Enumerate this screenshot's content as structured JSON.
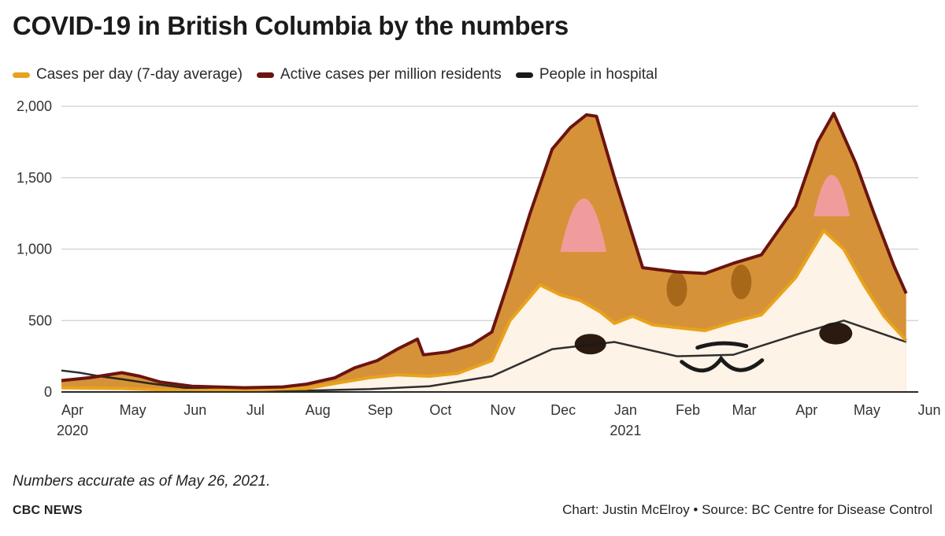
{
  "title": "COVID-19 in British Columbia by the numbers",
  "legend": [
    {
      "label": "Cases per day (7-day average)",
      "color": "#e8a21c"
    },
    {
      "label": "Active cases per million residents",
      "color": "#6b1410"
    },
    {
      "label": "People in hospital",
      "color": "#1a1a1a"
    }
  ],
  "note": "Numbers accurate as of May 26, 2021.",
  "brand": "CBC NEWS",
  "credit": "Chart: Justin McElroy • Source: BC Centre for Disease Control",
  "chart_data": {
    "type": "area",
    "ylim": [
      0,
      2000
    ],
    "yticks": [
      "0",
      "500",
      "1,000",
      "1,500",
      "2,000"
    ],
    "ytick_values": [
      0,
      500,
      1000,
      1500,
      2000
    ],
    "x_range": [
      "2020-04-01",
      "2021-06-01"
    ],
    "xticks": [
      {
        "label": "Apr",
        "year": "2020",
        "date": "2020-04-01"
      },
      {
        "label": "May",
        "year": "",
        "date": "2020-05-01"
      },
      {
        "label": "Jun",
        "year": "",
        "date": "2020-06-01"
      },
      {
        "label": "Jul",
        "year": "",
        "date": "2020-07-01"
      },
      {
        "label": "Aug",
        "year": "",
        "date": "2020-08-01"
      },
      {
        "label": "Sep",
        "year": "",
        "date": "2020-09-01"
      },
      {
        "label": "Oct",
        "year": "",
        "date": "2020-10-01"
      },
      {
        "label": "Nov",
        "year": "",
        "date": "2020-11-01"
      },
      {
        "label": "Dec",
        "year": "",
        "date": "2020-12-01"
      },
      {
        "label": "Jan",
        "year": "2021",
        "date": "2021-01-01"
      },
      {
        "label": "Feb",
        "year": "",
        "date": "2021-02-01"
      },
      {
        "label": "Mar",
        "year": "",
        "date": "2021-03-01"
      },
      {
        "label": "Apr",
        "year": "",
        "date": "2021-04-01"
      },
      {
        "label": "May",
        "year": "",
        "date": "2021-05-01"
      },
      {
        "label": "Jun",
        "year": "",
        "date": "2021-06-01"
      }
    ],
    "grid": true,
    "series": [
      {
        "name": "Active cases per million residents",
        "color": "#6b1410",
        "fill": "#d69238",
        "points": [
          [
            "2020-04-01",
            80
          ],
          [
            "2020-04-15",
            100
          ],
          [
            "2020-05-01",
            135
          ],
          [
            "2020-05-10",
            110
          ],
          [
            "2020-05-20",
            70
          ],
          [
            "2020-06-05",
            40
          ],
          [
            "2020-07-01",
            30
          ],
          [
            "2020-07-20",
            35
          ],
          [
            "2020-08-01",
            55
          ],
          [
            "2020-08-15",
            100
          ],
          [
            "2020-08-25",
            170
          ],
          [
            "2020-09-05",
            220
          ],
          [
            "2020-09-15",
            300
          ],
          [
            "2020-09-25",
            370
          ],
          [
            "2020-09-28",
            260
          ],
          [
            "2020-10-10",
            280
          ],
          [
            "2020-10-22",
            330
          ],
          [
            "2020-11-01",
            420
          ],
          [
            "2020-11-10",
            800
          ],
          [
            "2020-11-20",
            1250
          ],
          [
            "2020-12-01",
            1700
          ],
          [
            "2020-12-10",
            1850
          ],
          [
            "2020-12-18",
            1940
          ],
          [
            "2020-12-23",
            1930
          ],
          [
            "2021-01-01",
            1500
          ],
          [
            "2021-01-15",
            870
          ],
          [
            "2021-02-01",
            840
          ],
          [
            "2021-02-15",
            830
          ],
          [
            "2021-03-01",
            900
          ],
          [
            "2021-03-15",
            960
          ],
          [
            "2021-04-01",
            1300
          ],
          [
            "2021-04-12",
            1750
          ],
          [
            "2021-04-20",
            1950
          ],
          [
            "2021-05-01",
            1600
          ],
          [
            "2021-05-10",
            1250
          ],
          [
            "2021-05-20",
            880
          ],
          [
            "2021-05-26",
            690
          ]
        ]
      },
      {
        "name": "Cases per day (7-day average)",
        "color": "#e8a21c",
        "fill": "#fdf3e6",
        "points": [
          [
            "2020-04-01",
            30
          ],
          [
            "2020-05-01",
            25
          ],
          [
            "2020-06-01",
            10
          ],
          [
            "2020-07-01",
            15
          ],
          [
            "2020-08-01",
            25
          ],
          [
            "2020-08-15",
            60
          ],
          [
            "2020-09-01",
            100
          ],
          [
            "2020-09-15",
            120
          ],
          [
            "2020-10-01",
            110
          ],
          [
            "2020-10-15",
            130
          ],
          [
            "2020-11-01",
            220
          ],
          [
            "2020-11-10",
            500
          ],
          [
            "2020-11-25",
            750
          ],
          [
            "2020-12-05",
            680
          ],
          [
            "2020-12-15",
            640
          ],
          [
            "2020-12-25",
            560
          ],
          [
            "2021-01-01",
            480
          ],
          [
            "2021-01-10",
            530
          ],
          [
            "2021-01-20",
            470
          ],
          [
            "2021-02-01",
            450
          ],
          [
            "2021-02-15",
            430
          ],
          [
            "2021-03-01",
            490
          ],
          [
            "2021-03-15",
            540
          ],
          [
            "2021-04-01",
            800
          ],
          [
            "2021-04-15",
            1130
          ],
          [
            "2021-04-25",
            1000
          ],
          [
            "2021-05-05",
            750
          ],
          [
            "2021-05-15",
            530
          ],
          [
            "2021-05-26",
            360
          ]
        ]
      },
      {
        "name": "People in hospital",
        "color": "#1a1a1a",
        "points": [
          [
            "2020-04-01",
            150
          ],
          [
            "2020-04-10",
            135
          ],
          [
            "2020-04-20",
            110
          ],
          [
            "2020-05-01",
            90
          ],
          [
            "2020-05-15",
            60
          ],
          [
            "2020-06-01",
            30
          ],
          [
            "2020-07-01",
            15
          ],
          [
            "2020-08-01",
            10
          ],
          [
            "2020-09-01",
            20
          ],
          [
            "2020-10-01",
            40
          ],
          [
            "2020-11-01",
            110
          ],
          [
            "2020-12-01",
            300
          ],
          [
            "2021-01-01",
            350
          ],
          [
            "2021-02-01",
            250
          ],
          [
            "2021-03-01",
            260
          ],
          [
            "2021-04-01",
            400
          ],
          [
            "2021-04-25",
            500
          ],
          [
            "2021-05-26",
            350
          ]
        ]
      }
    ]
  }
}
